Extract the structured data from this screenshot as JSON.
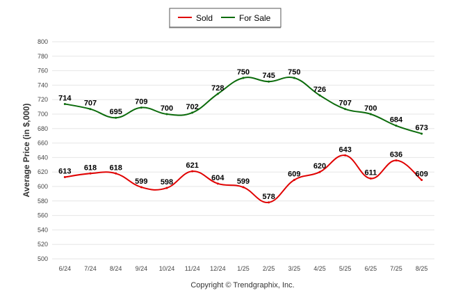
{
  "chart_data": {
    "type": "line",
    "categories": [
      "6/24",
      "7/24",
      "8/24",
      "9/24",
      "10/24",
      "11/24",
      "12/24",
      "1/25",
      "2/25",
      "3/25",
      "4/25",
      "5/25",
      "6/25",
      "7/25",
      "8/25"
    ],
    "series": [
      {
        "name": "Sold",
        "color": "#e00000",
        "values": [
          613,
          618,
          618,
          599,
          598,
          621,
          604,
          599,
          578,
          609,
          620,
          643,
          611,
          636,
          609
        ]
      },
      {
        "name": "For Sale",
        "color": "#0b6b0b",
        "values": [
          714,
          707,
          695,
          709,
          700,
          702,
          728,
          750,
          745,
          750,
          726,
          707,
          700,
          684,
          673
        ]
      }
    ],
    "ylabel": "Average Price (in $,000)",
    "xlabel": "",
    "ylim": [
      500,
      800
    ],
    "yticks": [
      500,
      520,
      540,
      560,
      580,
      600,
      620,
      640,
      660,
      680,
      700,
      720,
      740,
      760,
      780,
      800
    ],
    "grid": true,
    "legend_position": "top-center",
    "data_labels": true
  },
  "credit": "Copyright © Trendgraphix, Inc."
}
